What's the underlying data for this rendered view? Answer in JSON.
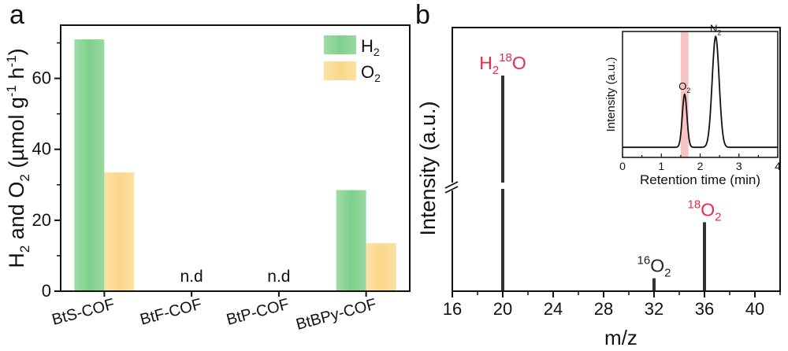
{
  "chart_data": [
    {
      "panel_label": "a",
      "type": "bar",
      "ylabel": "H2 and O2 (µmol g-1 h-1)",
      "ylabel_parts": {
        "p1": "H",
        "s1": "2",
        "p2": " and O",
        "s2": "2",
        "p3": " (µmol g",
        "s3": "-1",
        "p4": " h",
        "s4": "-1",
        "p5": ")"
      },
      "ylim": [
        0,
        75
      ],
      "yticks": [
        0,
        20,
        40,
        60
      ],
      "categories": [
        "BtS-COF",
        "BtF-COF",
        "BtP-COF",
        "BtBPy-COF"
      ],
      "series": [
        {
          "name": "H2",
          "name_main": "H",
          "name_sub": "2",
          "color": "#7fd08c",
          "values": [
            71,
            null,
            null,
            28.5
          ]
        },
        {
          "name": "O2",
          "name_main": "O",
          "name_sub": "2",
          "color": "#fbd88a",
          "values": [
            33.5,
            null,
            null,
            13.5
          ]
        }
      ],
      "annotations": [
        {
          "text": "n.d",
          "category": "BtF-COF"
        },
        {
          "text": "n.d",
          "category": "BtP-COF"
        }
      ],
      "legend": "top-right"
    },
    {
      "panel_label": "b",
      "type": "bar",
      "xlabel": "m/z",
      "ylabel": "Intensity (a.u.)",
      "xlim": [
        16,
        42
      ],
      "xticks": [
        16,
        20,
        24,
        28,
        32,
        36,
        40
      ],
      "y_axis_break": true,
      "peaks": [
        {
          "x": 20,
          "level": 1.0,
          "label_main": "H",
          "label_sub": "2",
          "label_sup": "18",
          "label_tail": "O",
          "color": "#e8294a"
        },
        {
          "x": 32,
          "level": 0.06,
          "label_sup": "16",
          "label_main": "O",
          "label_sub": "2",
          "color": "#222222"
        },
        {
          "x": 36,
          "level": 0.32,
          "label_sup": "18",
          "label_main": "O",
          "label_sub": "2",
          "color": "#e8294a"
        }
      ],
      "inset": {
        "type": "line",
        "xlabel": "Retention time (min)",
        "ylabel": "Intensity (a.u.)",
        "xlim": [
          0,
          4
        ],
        "xticks": [
          0,
          1,
          2,
          3,
          4
        ],
        "highlight_range": [
          1.5,
          1.7
        ],
        "highlight_color": "#f7c3c3",
        "peaks": [
          {
            "center": 1.6,
            "height": 0.42,
            "width": 0.06,
            "label_main": "O",
            "label_sub": "2"
          },
          {
            "center": 2.4,
            "height": 0.88,
            "width": 0.09,
            "label_main": "N",
            "label_sub": "2"
          }
        ],
        "baseline": 0.08
      }
    }
  ]
}
